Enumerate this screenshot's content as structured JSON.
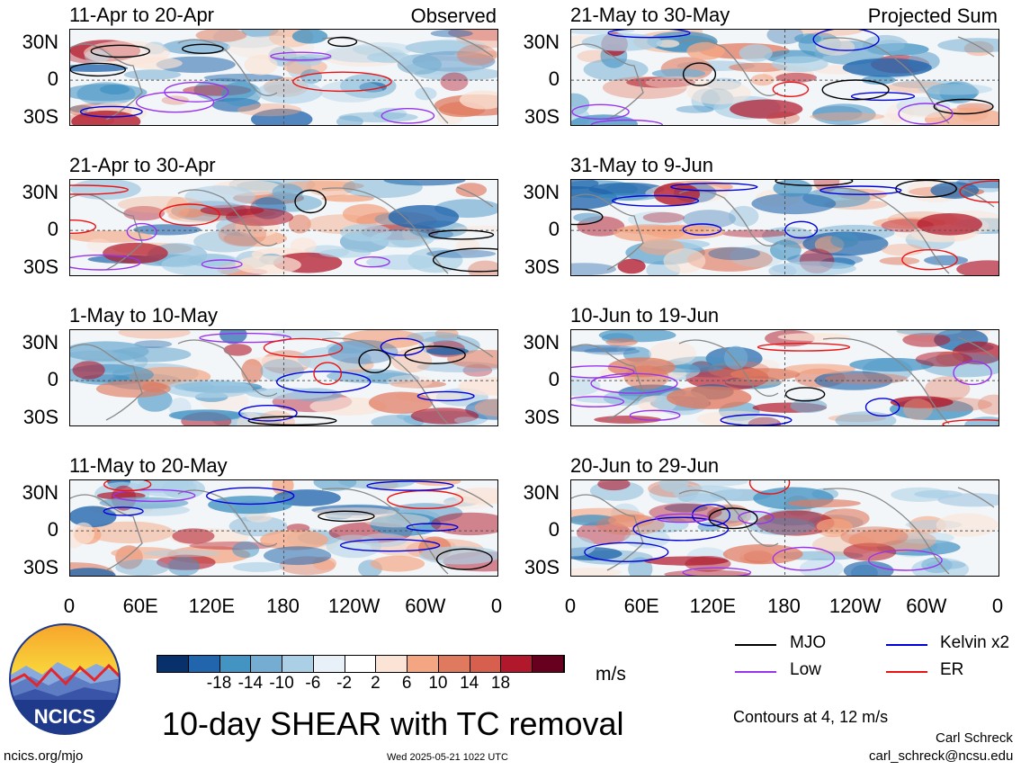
{
  "panels": [
    {
      "title": "11-Apr to 20-Apr",
      "tag": "Observed",
      "column": "left"
    },
    {
      "title": "21-Apr to 30-Apr",
      "tag": "",
      "column": "left"
    },
    {
      "title": "1-May to 10-May",
      "tag": "",
      "column": "left"
    },
    {
      "title": "11-May to 20-May",
      "tag": "",
      "column": "left"
    },
    {
      "title": "21-May to 30-May",
      "tag": "Projected Sum",
      "column": "right"
    },
    {
      "title": "31-May to 9-Jun",
      "tag": "",
      "column": "right"
    },
    {
      "title": "10-Jun to 19-Jun",
      "tag": "",
      "column": "right"
    },
    {
      "title": "20-Jun to 29-Jun",
      "tag": "",
      "column": "right"
    }
  ],
  "lat_labels": [
    "30N",
    "0",
    "30S"
  ],
  "lon_labels": [
    "0",
    "60E",
    "120E",
    "180",
    "120W",
    "60W",
    "0"
  ],
  "colorbar": {
    "ticks": [
      "-18",
      "-14",
      "-10",
      "-6",
      "-2",
      "2",
      "6",
      "10",
      "14",
      "18"
    ],
    "colors": [
      "#08306b",
      "#2166ac",
      "#4393c3",
      "#74add1",
      "#abd0e6",
      "#e8f1f7",
      "#ffffff",
      "#fbe3d5",
      "#f4a582",
      "#e07a5f",
      "#d6604d",
      "#b2182b",
      "#67001f"
    ],
    "unit": "m/s"
  },
  "legend": {
    "items": [
      {
        "label": "MJO",
        "color": "#000000"
      },
      {
        "label": "Kelvin x2",
        "color": "#0000dd"
      },
      {
        "label": "Low",
        "color": "#9933ee"
      },
      {
        "label": "ER",
        "color": "#ee1111"
      }
    ],
    "contours_note": "Contours at 4, 12 m/s"
  },
  "footer": {
    "main_title": "10-day SHEAR with TC removal",
    "site": "ncics.org/mjo",
    "timestamp": "Wed 2025-05-21 1022 UTC",
    "author": "Carl Schreck",
    "email": "carl_schreck@ncsu.edu",
    "logo_text": "NCICS"
  },
  "chart_data": {
    "type": "heatmap",
    "variable": "10-day SHEAR with TC removal",
    "unit": "m/s",
    "x_axis": {
      "ticks": [
        "0",
        "60E",
        "120E",
        "180",
        "120W",
        "60W",
        "0"
      ],
      "range": [
        0,
        360
      ]
    },
    "y_axis": {
      "ticks": [
        "30N",
        "0",
        "30S"
      ],
      "range": [
        -40,
        40
      ]
    },
    "color_levels": [
      -18,
      -14,
      -10,
      -6,
      -2,
      2,
      6,
      10,
      14,
      18
    ],
    "contour_levels": [
      4,
      12
    ],
    "contour_series": [
      "MJO",
      "Kelvin x2",
      "Low",
      "ER"
    ],
    "periods": [
      "11-Apr to 20-Apr",
      "21-Apr to 30-Apr",
      "1-May to 10-May",
      "11-May to 20-May",
      "21-May to 30-May",
      "31-May to 9-Jun",
      "10-Jun to 19-Jun",
      "20-Jun to 29-Jun"
    ]
  }
}
